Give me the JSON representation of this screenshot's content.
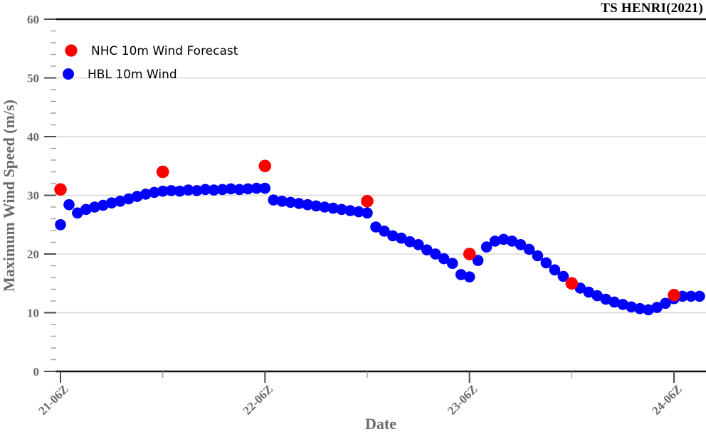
{
  "title": "TS HENRI(2021)",
  "chart_data": {
    "type": "scatter",
    "title": "TS HENRI(2021)",
    "xlabel": "Date",
    "ylabel": "Maximum Wind Speed (m/s)",
    "ylim": [
      0,
      60
    ],
    "y_major_ticks": [
      0,
      10,
      20,
      30,
      40,
      50,
      60
    ],
    "y_minor_step": 2,
    "x_axis_unit": "hours after 21-06Z",
    "x_major_ticks": [
      {
        "offset_hours": 0,
        "label": "21-06Z"
      },
      {
        "offset_hours": 24,
        "label": "22-06Z"
      },
      {
        "offset_hours": 48,
        "label": "23-06Z"
      },
      {
        "offset_hours": 72,
        "label": "24-06Z"
      }
    ],
    "x_minor_ticks_offset_hours": [
      12,
      36,
      60
    ],
    "x_tick_rotation_deg": 45,
    "grid": "horizontal-major",
    "legend_position": "upper-left",
    "colors": {
      "nhc_red": "#ff0000",
      "hbl_blue": "#0000ff",
      "grid": "#d8d8d8",
      "spine": "#111111",
      "major_tick": "#4d4d4d",
      "minor_tick": "#9e9e9e",
      "tick_label": "#6a6a6a",
      "axis_label": "#6a6a6a"
    },
    "series": [
      {
        "id": "nhc-forecast",
        "name": "NHC 10m Wind Forecast",
        "color": "#ff0000",
        "marker_radius": 8.8,
        "points": [
          {
            "time": "21-06Z",
            "offset_hours": 0,
            "value": 31
          },
          {
            "time": "21-18Z",
            "offset_hours": 12,
            "value": 34
          },
          {
            "time": "22-06Z",
            "offset_hours": 24,
            "value": 35
          },
          {
            "time": "22-18Z",
            "offset_hours": 36,
            "value": 29
          },
          {
            "time": "23-06Z",
            "offset_hours": 48,
            "value": 20
          },
          {
            "time": "23-18Z",
            "offset_hours": 60,
            "value": 15
          },
          {
            "time": "24-06Z",
            "offset_hours": 72,
            "value": 13
          }
        ]
      },
      {
        "id": "hbl-wind",
        "name": "HBL 10m Wind",
        "color": "#0000ff",
        "marker_radius": 7.8,
        "start_time": "21-06Z",
        "x_start_offset_hours": 0,
        "x_step_hours": 1,
        "values": [
          25.0,
          28.4,
          27.0,
          27.6,
          28.0,
          28.3,
          28.7,
          29.0,
          29.4,
          29.8,
          30.2,
          30.5,
          30.7,
          30.8,
          30.7,
          30.9,
          30.8,
          31.0,
          30.9,
          31.0,
          31.1,
          31.0,
          31.1,
          31.2,
          31.2,
          29.2,
          29.0,
          28.8,
          28.6,
          28.4,
          28.2,
          28.0,
          27.8,
          27.6,
          27.4,
          27.2,
          27.0,
          24.6,
          23.9,
          23.1,
          22.7,
          22.1,
          21.6,
          20.7,
          20.0,
          19.2,
          18.4,
          16.5,
          16.1,
          18.9,
          21.2,
          22.2,
          22.5,
          22.2,
          21.6,
          20.8,
          19.7,
          18.5,
          17.3,
          16.2,
          15.1,
          14.2,
          13.5,
          12.9,
          12.3,
          11.8,
          11.4,
          11.0,
          10.7,
          10.5,
          10.9,
          11.6,
          12.4,
          12.8,
          12.8,
          12.8
        ]
      }
    ]
  }
}
